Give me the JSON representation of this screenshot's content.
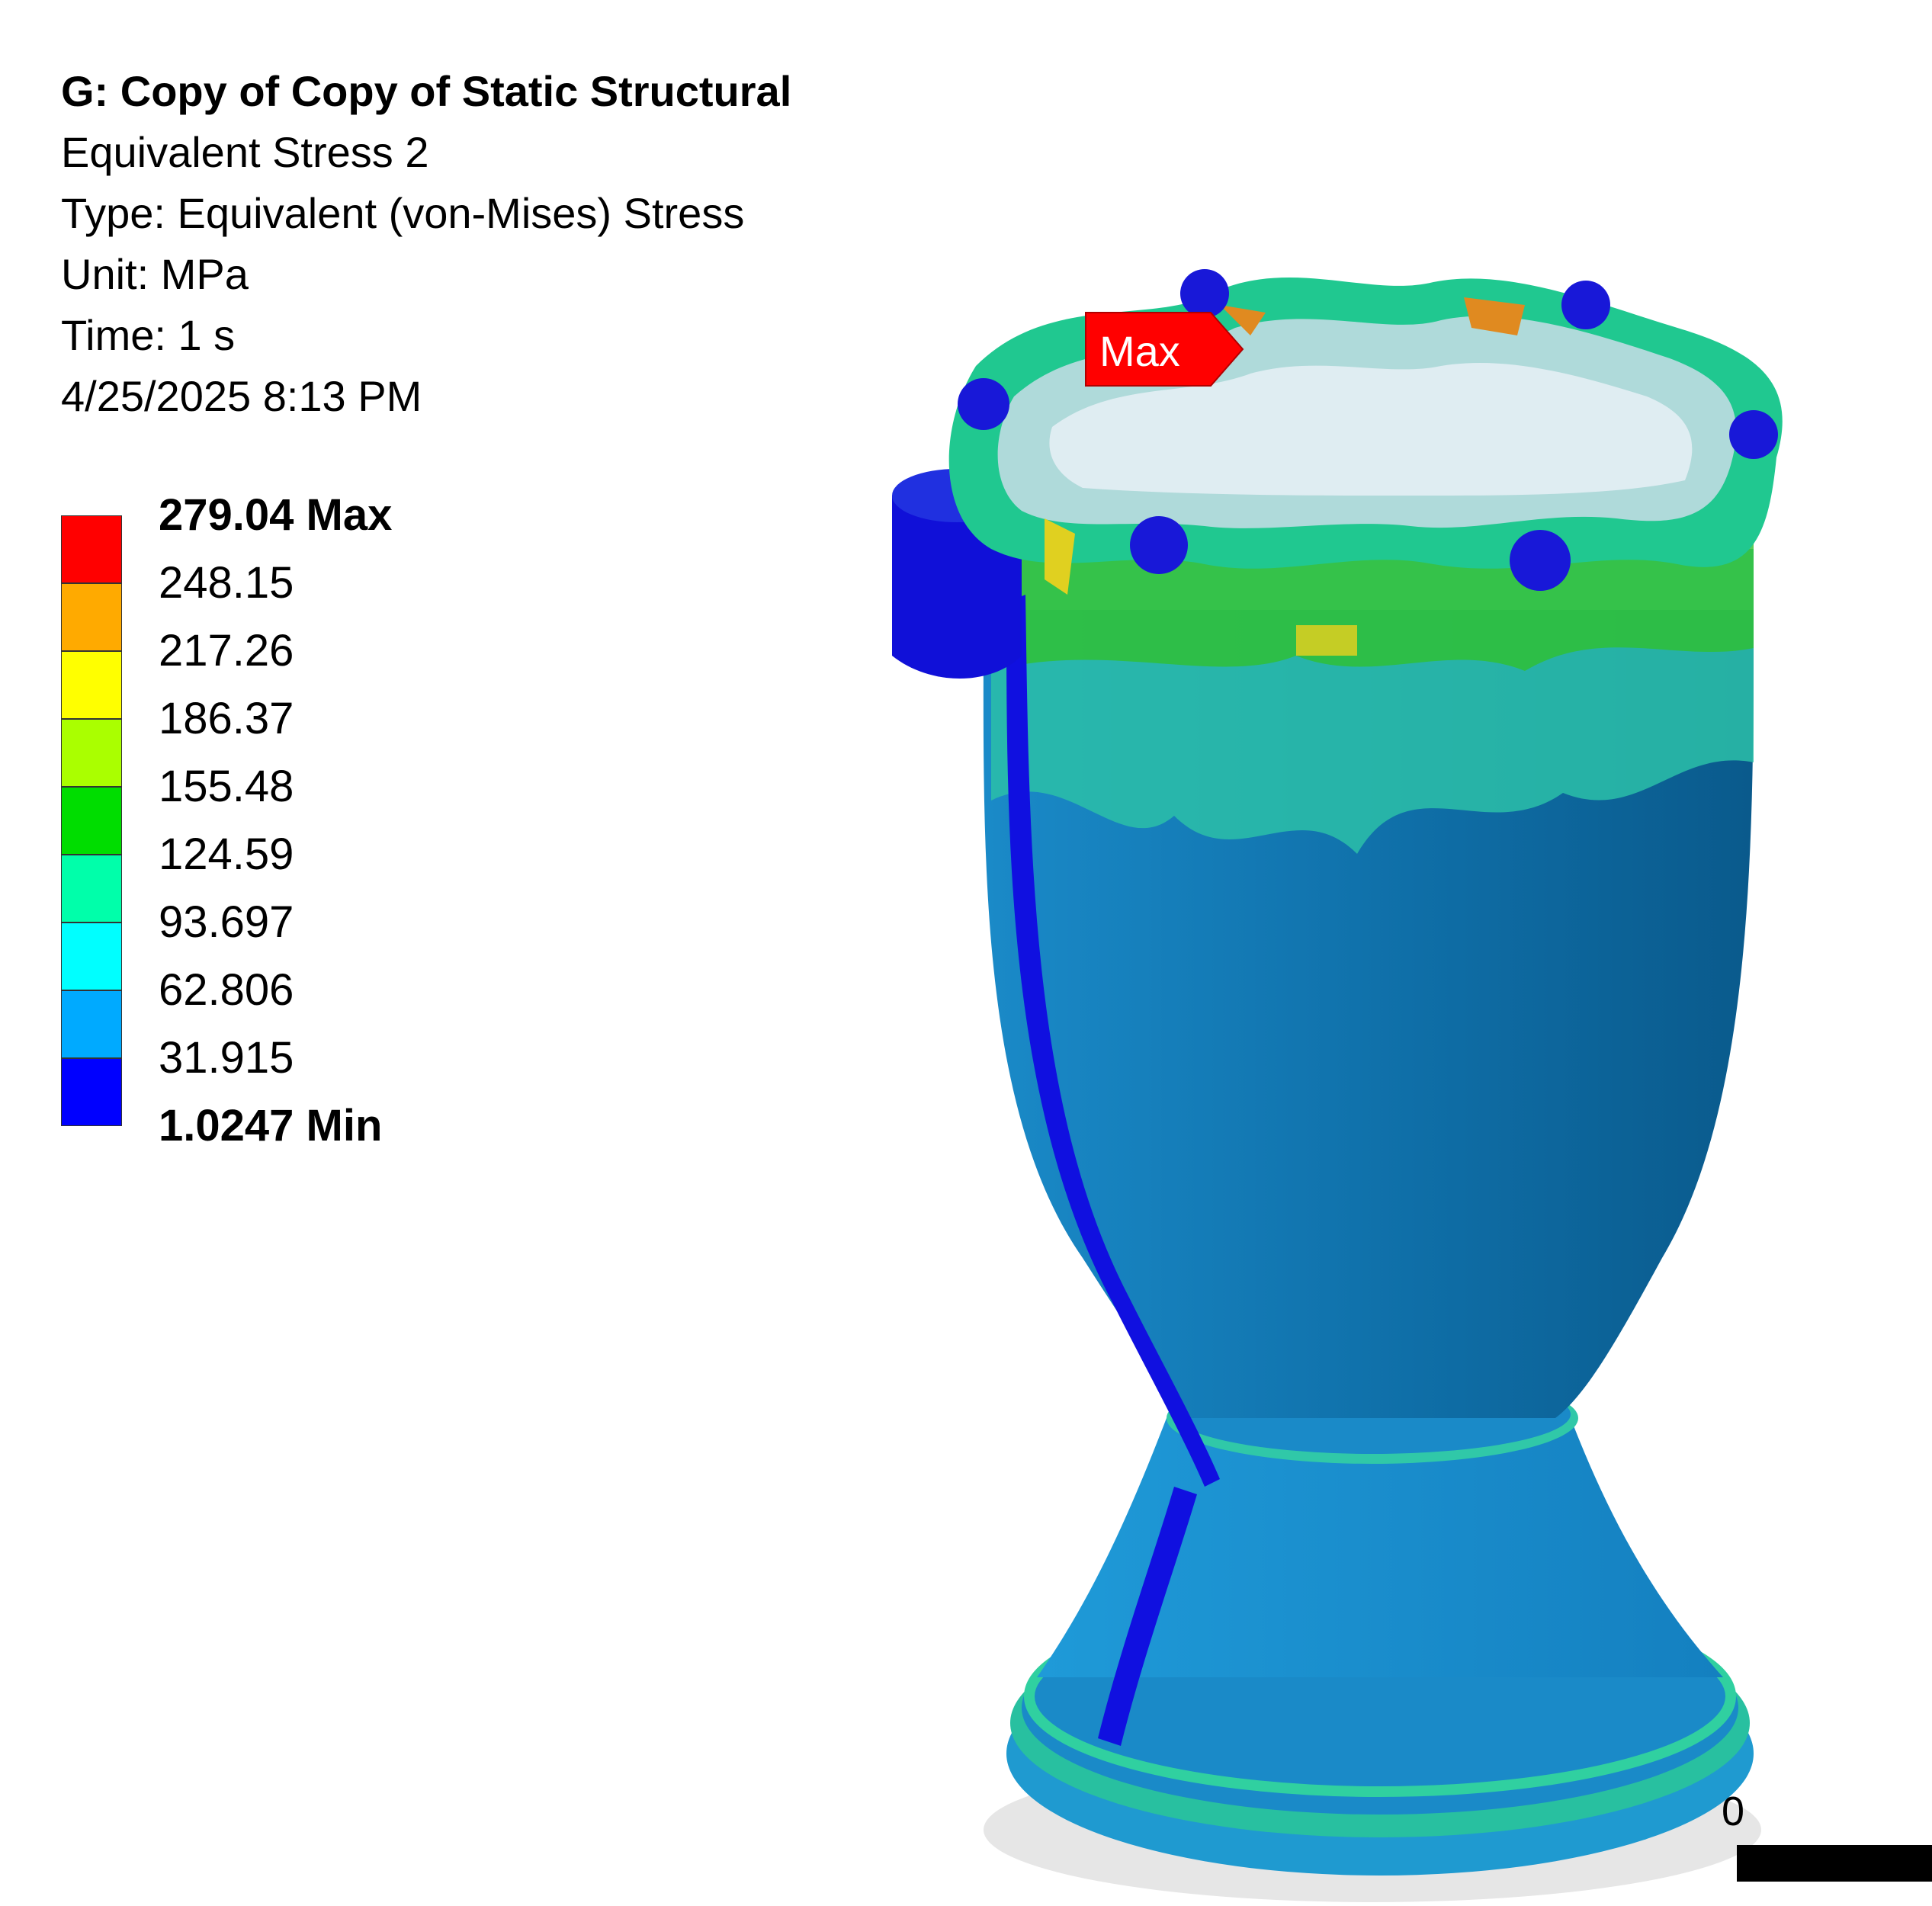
{
  "header": {
    "title": "G: Copy of Copy of Static Structural",
    "result_name": "Equivalent Stress 2",
    "type_line": "Type: Equivalent (von-Mises) Stress",
    "unit_line": "Unit: MPa",
    "time_line": "Time: 1 s",
    "date_line": "4/25/2025 8:13 PM"
  },
  "legend": {
    "entries": [
      {
        "label": "279.04 Max",
        "color": "#ff0000",
        "bold": true
      },
      {
        "label": "248.15",
        "color": "#ffaa00"
      },
      {
        "label": "217.26",
        "color": "#ffff00"
      },
      {
        "label": "186.37",
        "color": "#aaff00"
      },
      {
        "label": "155.48",
        "color": "#00dd00"
      },
      {
        "label": "124.59",
        "color": "#00ffaa"
      },
      {
        "label": "93.697",
        "color": "#00ffff"
      },
      {
        "label": "62.806",
        "color": "#00aaff"
      },
      {
        "label": "31.915",
        "color": "#0000ff"
      },
      {
        "label": "1.0247 Min"
      }
    ]
  },
  "viewport": {
    "max_probe_label": "Max",
    "scale_zero": "0",
    "colors": {
      "body": "#1a8ac8",
      "body_dark": "#0a5a8c",
      "low": "#1010e0",
      "teal": "#20d0a0",
      "green": "#30c030",
      "yellow": "#e0d020",
      "orange": "#e08a20",
      "probe": "#ff0000"
    }
  }
}
